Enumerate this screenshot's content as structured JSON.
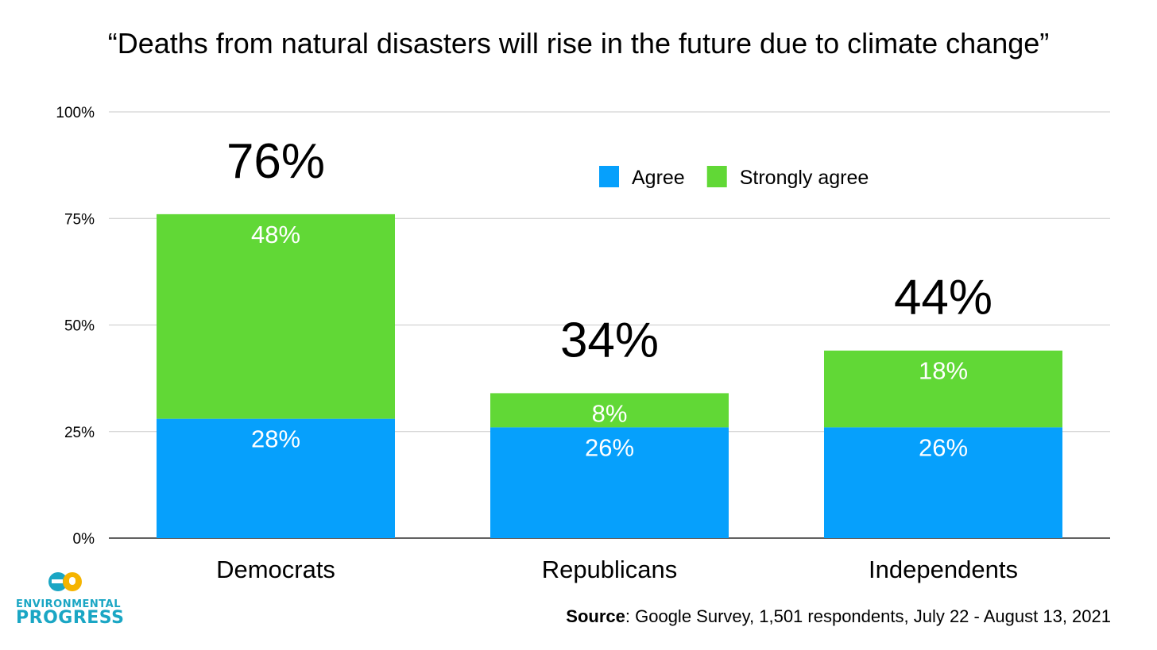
{
  "chart_data": {
    "type": "bar",
    "stacked": true,
    "title": "“Deaths from natural disasters will rise in the future due to climate change”",
    "categories": [
      "Democrats",
      "Republicans",
      "Independents"
    ],
    "series": [
      {
        "name": "Agree",
        "values": [
          28,
          26,
          26
        ],
        "labels": [
          "28%",
          "26%",
          "26%"
        ],
        "color": "#06a0fc"
      },
      {
        "name": "Strongly agree",
        "values": [
          48,
          8,
          18
        ],
        "labels": [
          "48%",
          "8%",
          "18%"
        ],
        "color": "#61d836"
      }
    ],
    "totals": [
      "76%",
      "34%",
      "44%"
    ],
    "y_ticks": [
      "0%",
      "25%",
      "50%",
      "75%",
      "100%"
    ],
    "ylim": [
      0,
      100
    ],
    "grid": true,
    "legend_position": "top-right"
  },
  "logo": {
    "word1": "ENVIRONMENTAL",
    "word2": "PROGRESS",
    "color": "#1aa6c4",
    "accent": "#f5b400"
  },
  "source": {
    "prefix": "Source",
    "text": ": Google Survey, 1,501 respondents, July 22 - August 13, 2021"
  }
}
